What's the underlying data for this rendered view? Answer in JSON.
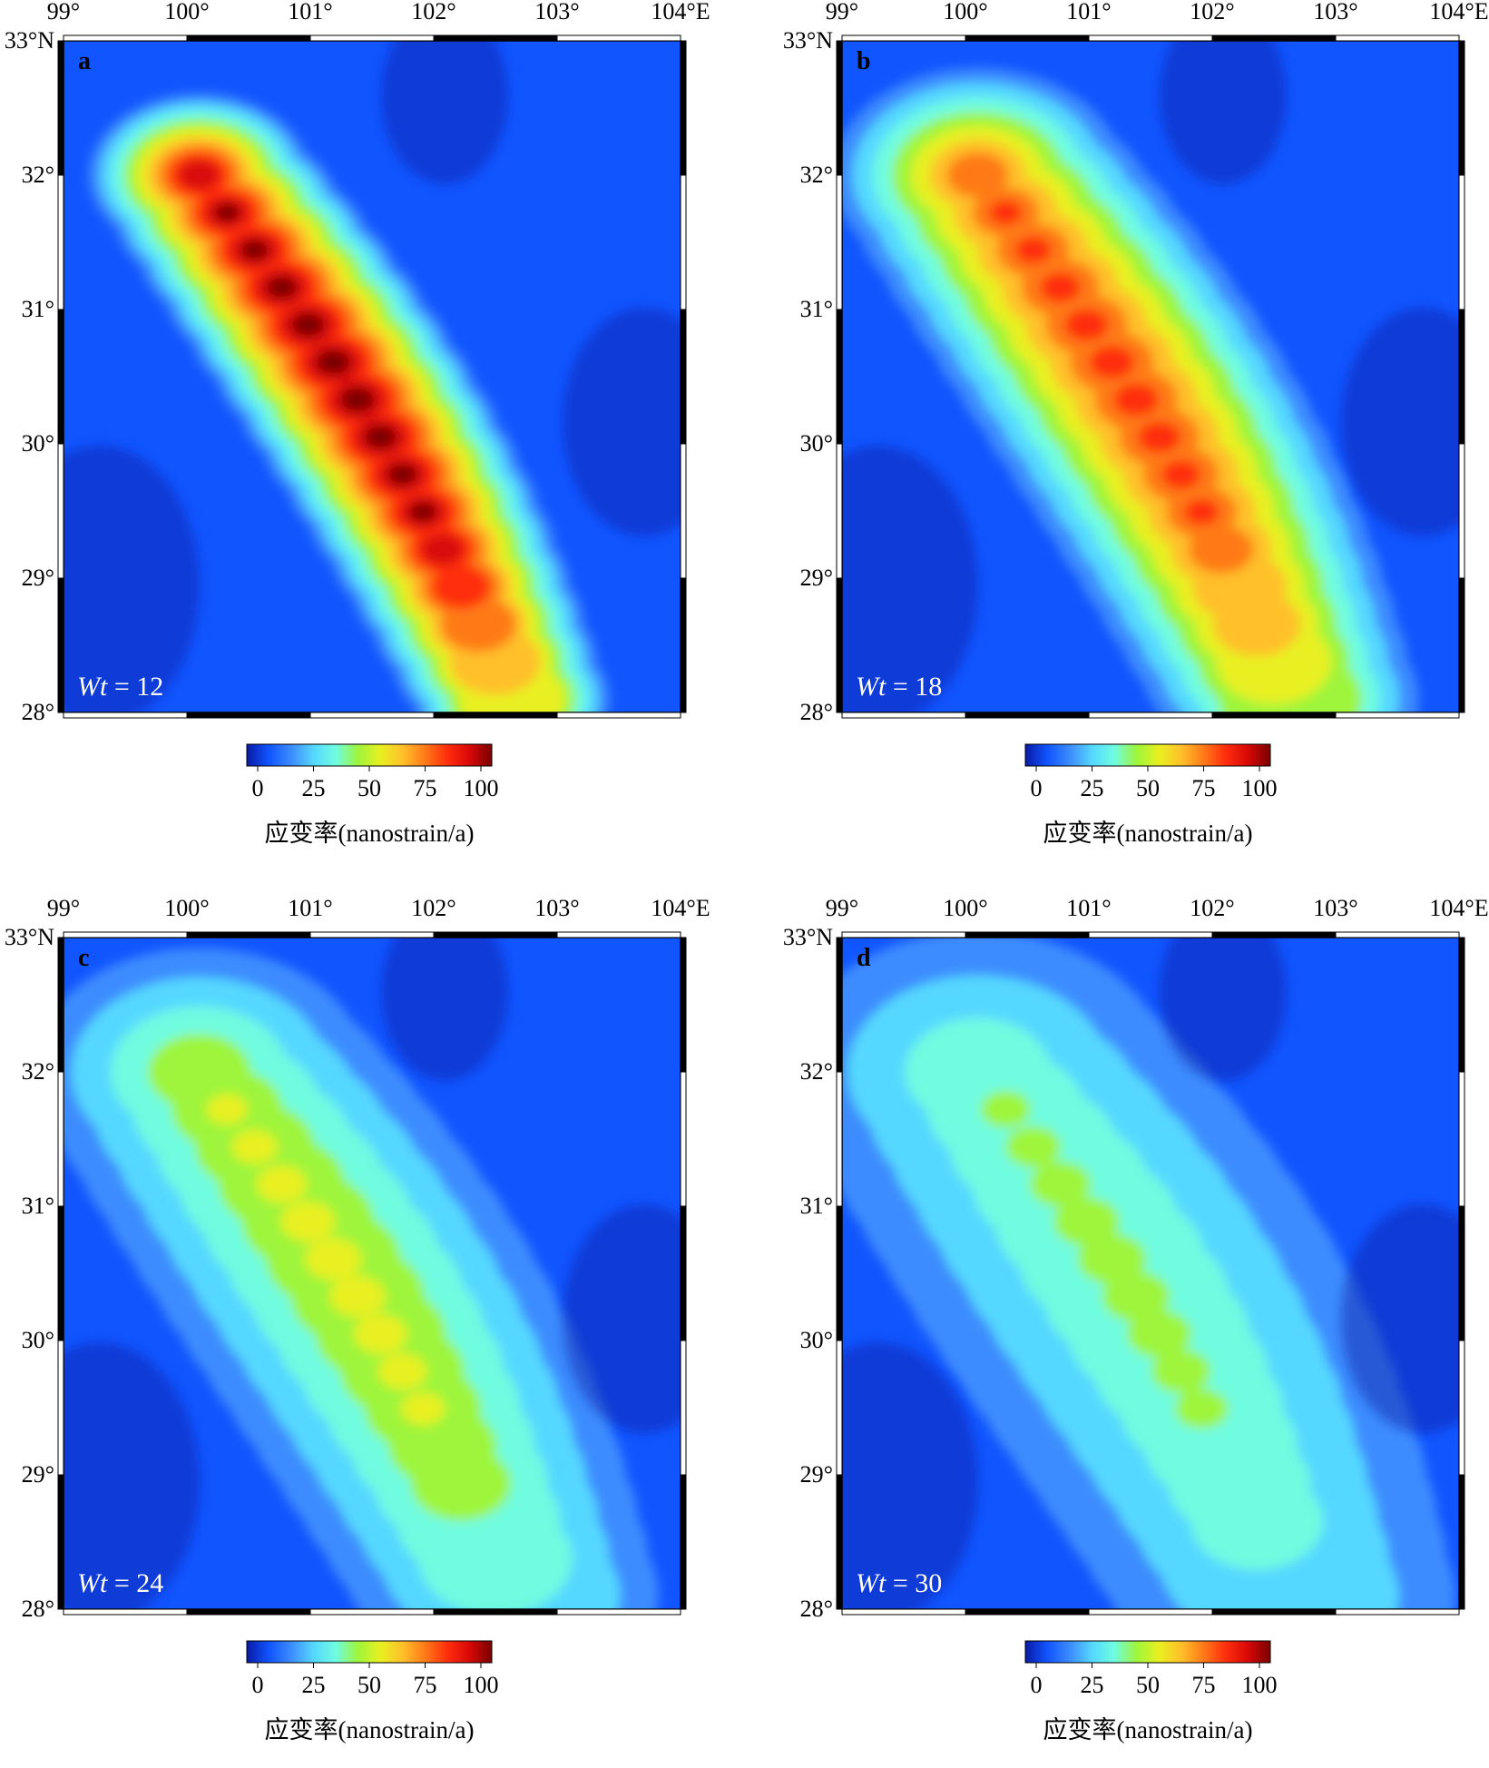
{
  "x_ticks": [
    "99°",
    "100°",
    "101°",
    "102°",
    "103°",
    "104°E"
  ],
  "y_ticks": [
    "33°N",
    "32°",
    "31°",
    "30°",
    "29°",
    "28°"
  ],
  "colorbar": {
    "ticks": [
      "0",
      "25",
      "50",
      "75",
      "100"
    ],
    "title": "应变率(nanostrain/a)",
    "colors": [
      "#0a1aa6",
      "#1155ff",
      "#3c8cff",
      "#55d8ff",
      "#6ffce0",
      "#9ef53a",
      "#e8f020",
      "#ffc02a",
      "#ff7a18",
      "#ff2e0c",
      "#d80808",
      "#7a0000"
    ]
  },
  "panels": [
    {
      "letter": "a",
      "wt_symbol": "Wt",
      "wt_value": "= 12",
      "peak_level": 11
    },
    {
      "letter": "b",
      "wt_symbol": "Wt",
      "wt_value": "= 18",
      "peak_level": 9
    },
    {
      "letter": "c",
      "wt_symbol": "Wt",
      "wt_value": "= 24",
      "peak_level": 6
    },
    {
      "letter": "d",
      "wt_symbol": "Wt",
      "wt_value": "= 30",
      "peak_level": 5
    }
  ]
}
